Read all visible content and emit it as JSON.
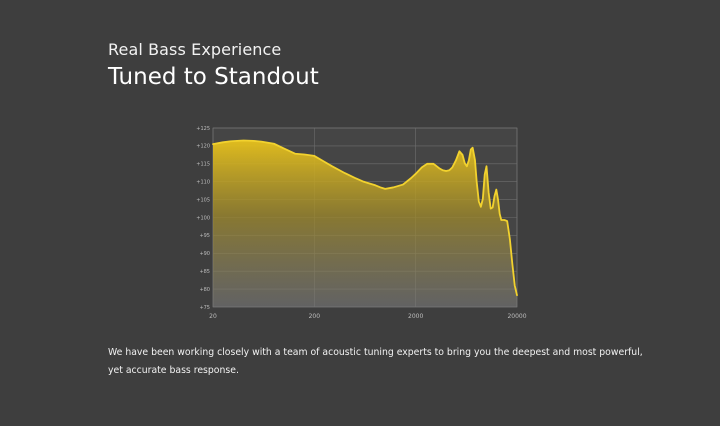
{
  "header": {
    "subtitle": "Real Bass Experience",
    "title": "Tuned to Standout"
  },
  "description": "We have been working closely with a team of acoustic tuning experts to bring you the deepest and most powerful, yet accurate bass response.",
  "colors": {
    "background": "#3e3e3e",
    "curve": "#f2d22e",
    "grid": "#7a7a7a"
  },
  "chart_data": {
    "type": "area",
    "title": "",
    "xlabel": "",
    "ylabel": "",
    "xscale": "log",
    "xlim": [
      20,
      20000
    ],
    "ylim": [
      75,
      125
    ],
    "grid": true,
    "x_ticks": [
      "20",
      "200",
      "2000",
      "20000"
    ],
    "y_ticks": [
      "+125",
      "+120",
      "+115",
      "+110",
      "+105",
      "+100",
      "+95",
      "+90",
      "+85",
      "+80",
      "+75"
    ],
    "series": [
      {
        "x": [
          20,
          25,
          30,
          40,
          50,
          60,
          80,
          100,
          130,
          160,
          200,
          250,
          300,
          400,
          500,
          600,
          700,
          800,
          900,
          1000,
          1200,
          1500,
          1800,
          2000,
          2300,
          2600,
          3000,
          3400,
          3700,
          4000,
          4300,
          4600,
          5000,
          5400,
          5800,
          6100,
          6400,
          6700,
          7000,
          7300,
          7700,
          8000,
          8400,
          8800,
          9200,
          9600,
          10000,
          10500,
          11000,
          11500,
          12000,
          12500,
          13000,
          13500,
          14000,
          15000,
          16000,
          17000,
          18000,
          19000,
          20000
        ],
        "values": [
          120.5,
          121,
          121.3,
          121.5,
          121.4,
          121.2,
          120.6,
          119.3,
          117.8,
          117.6,
          117.2,
          115.6,
          114.3,
          112.4,
          111.1,
          110.1,
          109.5,
          109.0,
          108.4,
          108.0,
          108.4,
          109.2,
          111.0,
          112.2,
          114.0,
          115.0,
          115.0,
          113.8,
          113.2,
          113.0,
          113.2,
          114.0,
          116.0,
          118.5,
          117.5,
          115.2,
          114.3,
          116.0,
          119.0,
          119.5,
          116.0,
          110.0,
          104.5,
          103.0,
          105.2,
          112.0,
          114.3,
          107.0,
          102.5,
          102.8,
          106.0,
          107.8,
          105.0,
          101.0,
          99.3,
          99.3,
          99.0,
          94.0,
          87.0,
          81.0,
          78.3
        ]
      }
    ]
  }
}
